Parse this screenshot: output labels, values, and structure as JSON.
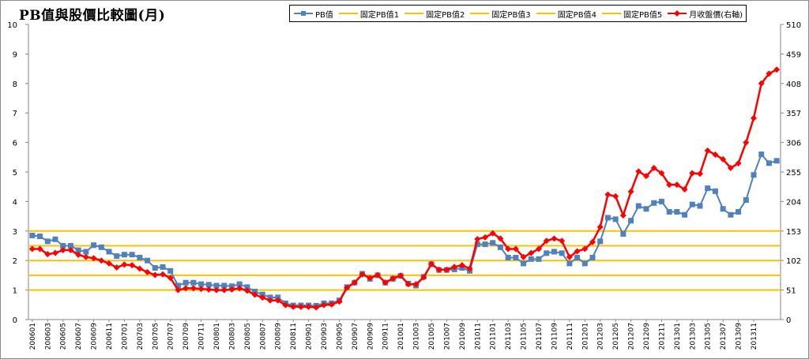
{
  "chart_data": {
    "type": "line",
    "title": "PB值與股價比較圖(月)",
    "legend": [
      "PB值",
      "固定PB值1",
      "固定PB值2",
      "固定PB值3",
      "固定PB值4",
      "固定PB值5",
      "月收盤價(右軸)"
    ],
    "legend_position": "top-right",
    "grid": false,
    "y_left": {
      "ticks": [
        "0",
        "1",
        "2",
        "3",
        "4",
        "5",
        "6",
        "7",
        "8",
        "9",
        "10"
      ],
      "range": [
        0,
        10
      ]
    },
    "y_right": {
      "ticks": [
        "0",
        "51",
        "102",
        "153",
        "204",
        "255",
        "306",
        "357",
        "408",
        "459",
        "510"
      ],
      "range": [
        0,
        510
      ]
    },
    "x_tick_labels": [
      "200601",
      "200603",
      "200605",
      "200607",
      "200609",
      "200611",
      "200701",
      "200703",
      "200705",
      "200707",
      "200709",
      "200711",
      "200801",
      "200803",
      "200805",
      "200807",
      "200809",
      "200811",
      "200901",
      "200903",
      "200905",
      "200907",
      "200909",
      "200911",
      "201001",
      "201003",
      "201005",
      "201007",
      "201009",
      "201011",
      "201101",
      "201103",
      "201105",
      "201107",
      "201109",
      "201111",
      "201201",
      "201203",
      "201205",
      "201207",
      "201209",
      "201211",
      "201301",
      "201303",
      "201305",
      "201307",
      "201309",
      "201311"
    ],
    "fixed_pb": [
      {
        "name": "固定PB值1",
        "value": 1.0
      },
      {
        "name": "固定PB值2",
        "value": 1.5
      },
      {
        "name": "固定PB值3",
        "value": 2.0
      },
      {
        "name": "固定PB值4",
        "value": 2.5
      },
      {
        "name": "固定PB值5",
        "value": 3.0
      }
    ],
    "series": [
      {
        "name": "PB值",
        "axis": "left",
        "color": "#4f81bd",
        "values": [
          2.85,
          2.82,
          2.65,
          2.72,
          2.5,
          2.5,
          2.35,
          2.3,
          2.52,
          2.45,
          2.3,
          2.15,
          2.2,
          2.2,
          2.1,
          2.0,
          1.75,
          1.78,
          1.65,
          1.15,
          1.25,
          1.25,
          1.2,
          1.18,
          1.15,
          1.15,
          1.13,
          1.2,
          1.1,
          0.95,
          0.85,
          0.75,
          0.75,
          0.55,
          0.48,
          0.48,
          0.48,
          0.47,
          0.55,
          0.55,
          0.65,
          1.1,
          1.25,
          1.55,
          1.38,
          1.5,
          1.25,
          1.38,
          1.48,
          1.22,
          1.15,
          1.45,
          1.88,
          1.68,
          1.68,
          1.7,
          1.75,
          1.65,
          2.55,
          2.55,
          2.6,
          2.45,
          2.1,
          2.1,
          1.9,
          2.05,
          2.05,
          2.25,
          2.3,
          2.25,
          1.9,
          2.1,
          1.9,
          2.1,
          2.65,
          3.45,
          3.4,
          2.9,
          3.35,
          3.85,
          3.75,
          3.95,
          4.0,
          3.65,
          3.65,
          3.55,
          3.9,
          3.85,
          4.45,
          4.35,
          3.75,
          3.55,
          3.65,
          4.05,
          4.9,
          5.6,
          5.3,
          5.38
        ]
      },
      {
        "name": "月收盤價(右軸)",
        "axis": "right",
        "color": "#ff0000",
        "values": [
          122,
          122,
          113,
          115,
          120,
          120,
          112,
          108,
          106,
          102,
          97,
          90,
          95,
          94,
          88,
          82,
          77,
          78,
          72,
          51,
          54,
          54,
          53,
          52,
          51,
          51,
          52,
          54,
          50,
          43,
          38,
          33,
          33,
          25,
          22,
          22,
          22,
          21,
          25,
          26,
          31,
          55,
          64,
          78,
          72,
          77,
          64,
          71,
          76,
          61,
          61,
          73,
          96,
          86,
          86,
          91,
          94,
          88,
          139,
          142,
          149,
          140,
          122,
          122,
          108,
          115,
          122,
          136,
          140,
          136,
          108,
          118,
          122,
          134,
          160,
          216,
          213,
          180,
          221,
          256,
          248,
          262,
          253,
          233,
          233,
          225,
          253,
          252,
          292,
          285,
          277,
          262,
          270,
          306,
          348,
          408,
          425,
          432
        ]
      }
    ]
  }
}
